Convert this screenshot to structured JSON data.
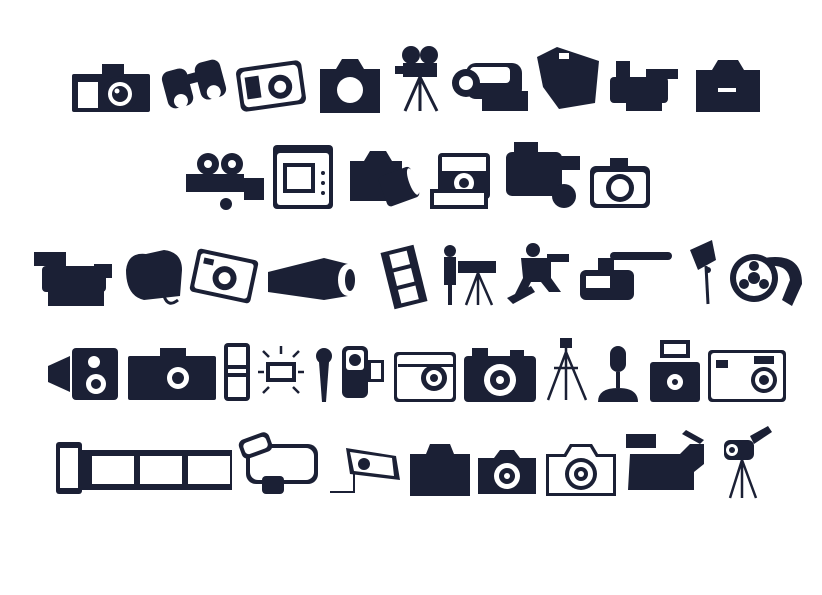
{
  "colors": {
    "ink": "#1b2035",
    "paper": "#ffffff",
    "background": "#ffffff"
  },
  "rows": [
    {
      "icons": [
        "slr-camera-icon",
        "binoculars-icon",
        "compact-camera-icon",
        "camera-silhouette-icon",
        "film-camera-on-tripod-icon",
        "camcorder-icon",
        "handycam-icon",
        "pro-video-camera-icon",
        "dslr-body-icon"
      ]
    },
    {
      "icons": [
        "movie-projector-icon",
        "digital-camera-icon",
        "dslr-with-lens-icon",
        "instant-camera-icon",
        "broadcast-camera-icon",
        "point-and-shoot-icon"
      ]
    },
    {
      "icons": [
        "shoulder-camcorder-icon",
        "slr-with-strap-icon",
        "tilted-compact-camera-icon",
        "security-camera-icon",
        "film-strip-icon",
        "cameraman-icon",
        "crane-operator-icon",
        "camcorder-with-mic-icon",
        "studio-light-icon",
        "film-reel-icon"
      ]
    },
    {
      "icons": [
        "old-projector-icon",
        "wide-camera-icon",
        "mobile-phone-icon",
        "camera-flash-icon",
        "microphone-icon",
        "mini-camcorder-icon",
        "outline-camera-icon",
        "rangefinder-camera-icon",
        "tripod-icon",
        "studio-microphone-icon",
        "flash-camera-icon",
        "digital-compact-icon"
      ]
    },
    {
      "icons": [
        "film-roll-icon",
        "camcorder-outline-icon",
        "cctv-camera-icon",
        "camera-body-icon",
        "small-camera-icon",
        "outline-slr-icon",
        "tv-camera-icon",
        "camera-on-tripod-icon"
      ]
    }
  ]
}
